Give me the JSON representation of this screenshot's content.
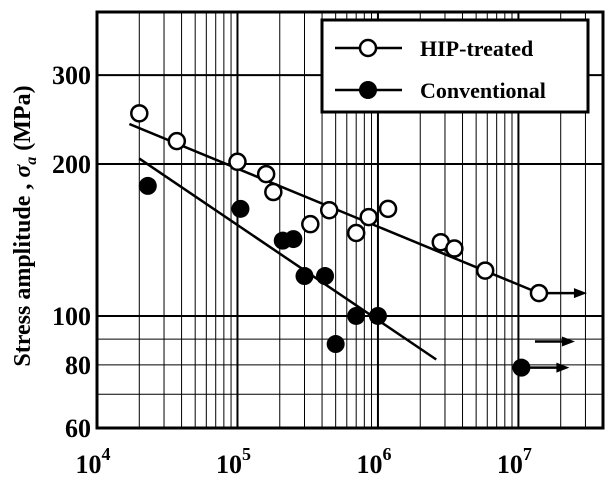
{
  "chart_data": {
    "type": "scatter",
    "x_scale": "log",
    "y_scale": "log",
    "xlim": [
      10000,
      40000000
    ],
    "ylim": [
      60,
      400
    ],
    "x_ticks": [
      {
        "value": 10000,
        "base": "10",
        "exp": "4"
      },
      {
        "value": 100000,
        "base": "10",
        "exp": "5"
      },
      {
        "value": 1000000,
        "base": "10",
        "exp": "6"
      },
      {
        "value": 10000000,
        "base": "10",
        "exp": "7"
      }
    ],
    "y_ticks": [
      {
        "value": 60,
        "label": "60"
      },
      {
        "value": 80,
        "label": "80"
      },
      {
        "value": 100,
        "label": "100"
      },
      {
        "value": 200,
        "label": "200"
      },
      {
        "value": 300,
        "label": "300"
      }
    ],
    "ylabel": {
      "main": "Stress amplitude , ",
      "symbol": "σ",
      "sub": "a",
      "unit": " (MPa)"
    },
    "xlabel": "",
    "grid": true,
    "legend_position": "top-right",
    "series": [
      {
        "name": "HIP-treated",
        "marker": "open-circle",
        "points": [
          [
            20000,
            252
          ],
          [
            37000,
            222
          ],
          [
            100000,
            202
          ],
          [
            160000,
            191
          ],
          [
            180000,
            176
          ],
          [
            330000,
            152
          ],
          [
            450000,
            162
          ],
          [
            700000,
            146
          ],
          [
            860000,
            157
          ],
          [
            1180000,
            163
          ],
          [
            2800000,
            140
          ],
          [
            3500000,
            136
          ],
          [
            5800000,
            123
          ],
          [
            14000000,
            111
          ]
        ],
        "runouts": [
          [
            14000000,
            111
          ],
          [
            11500000,
            89
          ]
        ],
        "fit_line": [
          [
            17000,
            240
          ],
          [
            14000000,
            111
          ]
        ]
      },
      {
        "name": "Conventional",
        "marker": "filled-circle",
        "points": [
          [
            23000,
            181
          ],
          [
            105000,
            163
          ],
          [
            210000,
            141
          ],
          [
            250000,
            142
          ],
          [
            300000,
            120
          ],
          [
            420000,
            120
          ],
          [
            500000,
            88
          ],
          [
            700000,
            100
          ],
          [
            1000000,
            100
          ],
          [
            10500000,
            79
          ]
        ],
        "runouts": [
          [
            10500000,
            79
          ]
        ],
        "fit_line": [
          [
            20000,
            205
          ],
          [
            2600000,
            82
          ]
        ]
      }
    ]
  }
}
